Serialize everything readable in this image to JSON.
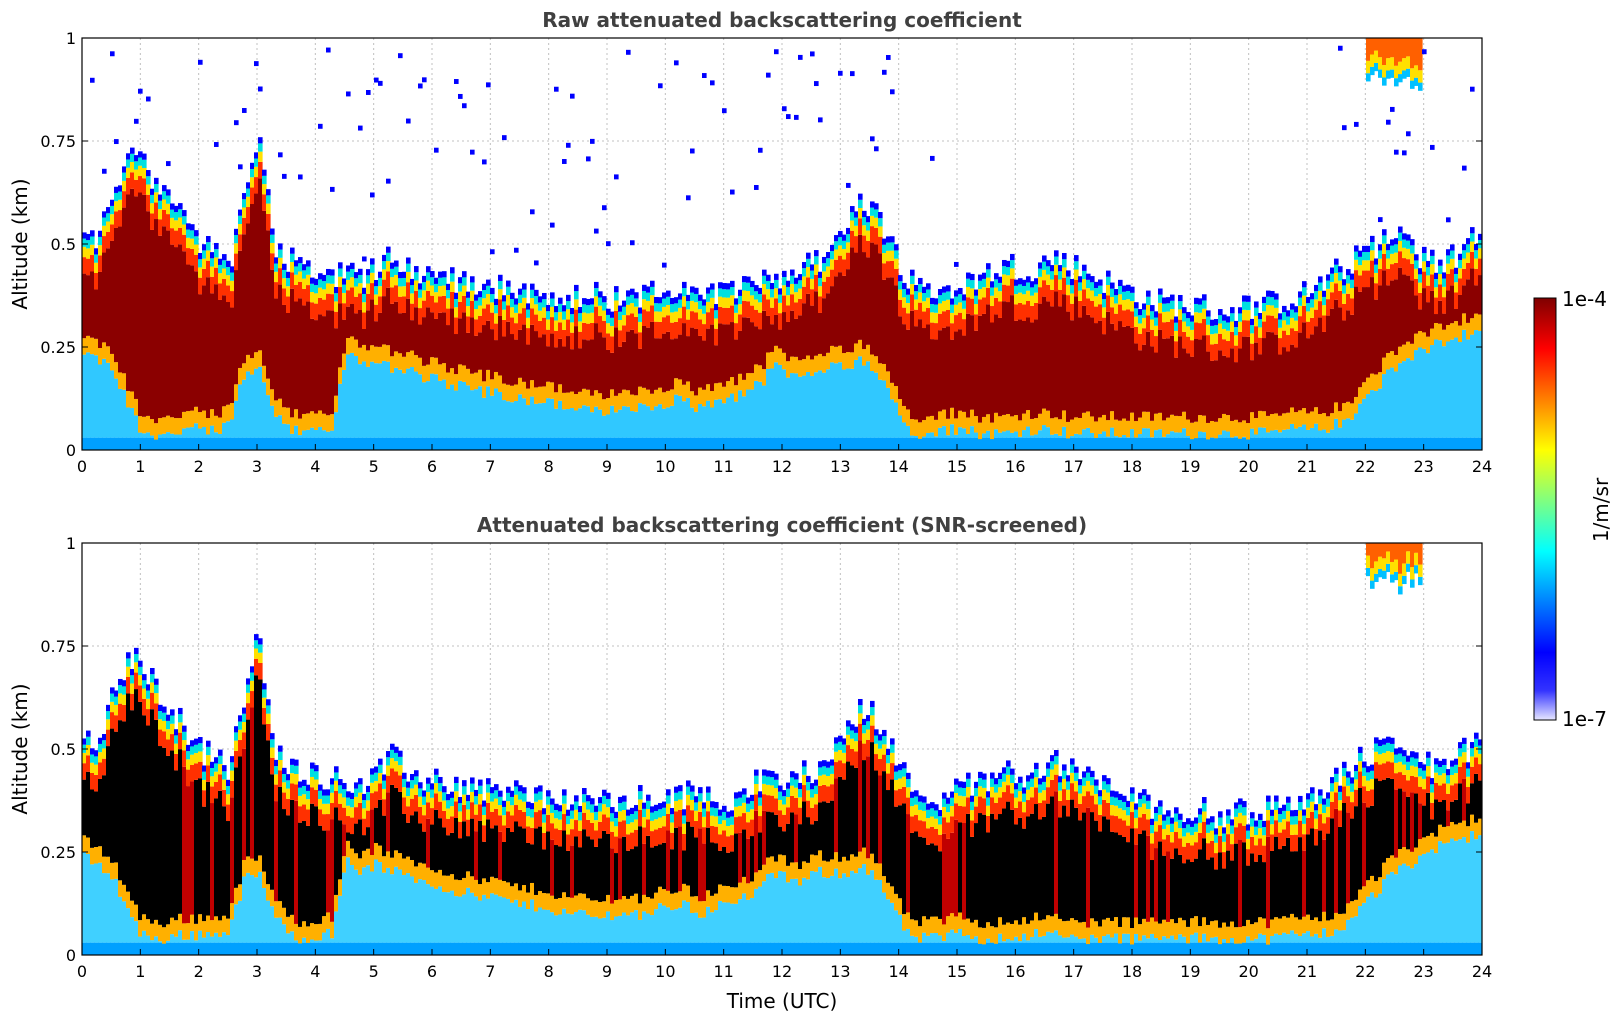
{
  "chart_data": [
    {
      "type": "heatmap",
      "title": "Raw attenuated backscattering coefficient",
      "xlabel": "",
      "ylabel": "Altitude (km)",
      "xlim": [
        0,
        24
      ],
      "ylim": [
        0,
        1
      ],
      "xticks": [
        "0",
        "1",
        "2",
        "3",
        "4",
        "5",
        "6",
        "7",
        "8",
        "9",
        "10",
        "11",
        "12",
        "13",
        "14",
        "15",
        "16",
        "17",
        "18",
        "19",
        "20",
        "21",
        "22",
        "23",
        "24"
      ],
      "yticks": [
        "0",
        "0.25",
        "0.5",
        "0.75",
        "1"
      ],
      "yticks_values": [
        0,
        0.25,
        0.5,
        0.75,
        1
      ],
      "grid": true,
      "screened": false,
      "layer_top_km": [
        0.52,
        0.5,
        0.62,
        0.7,
        0.72,
        0.65,
        0.6,
        0.55,
        0.5,
        0.48,
        0.45,
        0.62,
        0.78,
        0.5,
        0.46,
        0.45,
        0.44,
        0.43,
        0.42,
        0.42,
        0.44,
        0.48,
        0.45,
        0.43,
        0.42,
        0.42,
        0.41,
        0.41,
        0.4,
        0.4,
        0.39,
        0.39,
        0.38,
        0.38,
        0.37,
        0.38,
        0.37,
        0.37,
        0.38,
        0.38,
        0.38,
        0.39,
        0.39,
        0.38,
        0.38,
        0.41,
        0.42,
        0.43,
        0.42,
        0.44,
        0.46,
        0.5,
        0.55,
        0.6,
        0.58,
        0.5,
        0.42,
        0.4,
        0.38,
        0.4,
        0.41,
        0.42,
        0.44,
        0.45,
        0.44,
        0.45,
        0.47,
        0.45,
        0.44,
        0.42,
        0.4,
        0.39,
        0.37,
        0.36,
        0.36,
        0.35,
        0.35,
        0.34,
        0.34,
        0.35,
        0.35,
        0.36,
        0.37,
        0.38,
        0.4,
        0.43,
        0.45,
        0.48,
        0.5,
        0.52,
        0.5,
        0.47,
        0.45,
        0.47,
        0.5,
        0.55
      ],
      "layer_bottom_km": [
        0.24,
        0.22,
        0.2,
        0.12,
        0.05,
        0.04,
        0.04,
        0.05,
        0.05,
        0.05,
        0.06,
        0.18,
        0.2,
        0.1,
        0.05,
        0.04,
        0.05,
        0.05,
        0.24,
        0.2,
        0.22,
        0.2,
        0.2,
        0.18,
        0.17,
        0.16,
        0.15,
        0.14,
        0.14,
        0.13,
        0.12,
        0.12,
        0.11,
        0.1,
        0.1,
        0.09,
        0.1,
        0.1,
        0.1,
        0.11,
        0.12,
        0.12,
        0.1,
        0.12,
        0.12,
        0.14,
        0.16,
        0.2,
        0.18,
        0.18,
        0.2,
        0.2,
        0.2,
        0.22,
        0.18,
        0.12,
        0.05,
        0.04,
        0.04,
        0.05,
        0.05,
        0.04,
        0.04,
        0.04,
        0.05,
        0.05,
        0.05,
        0.04,
        0.04,
        0.04,
        0.04,
        0.04,
        0.04,
        0.04,
        0.04,
        0.04,
        0.04,
        0.04,
        0.04,
        0.04,
        0.04,
        0.04,
        0.05,
        0.05,
        0.05,
        0.06,
        0.08,
        0.12,
        0.16,
        0.2,
        0.22,
        0.24,
        0.26,
        0.27,
        0.28,
        0.3
      ],
      "cloud": {
        "x_range": [
          22.0,
          23.0
        ],
        "bottom_km": 0.9
      },
      "colorbar": {
        "label": "1/m/sr",
        "max": "1e-4",
        "min": "1e-7"
      }
    },
    {
      "type": "heatmap",
      "title": "Attenuated backscattering coefficient (SNR-screened)",
      "xlabel": "Time (UTC)",
      "ylabel": "Altitude (km)",
      "xlim": [
        0,
        24
      ],
      "ylim": [
        0,
        1
      ],
      "xticks": [
        "0",
        "1",
        "2",
        "3",
        "4",
        "5",
        "6",
        "7",
        "8",
        "9",
        "10",
        "11",
        "12",
        "13",
        "14",
        "15",
        "16",
        "17",
        "18",
        "19",
        "20",
        "21",
        "22",
        "23",
        "24"
      ],
      "yticks": [
        "0",
        "0.25",
        "0.5",
        "0.75",
        "1"
      ],
      "yticks_values": [
        0,
        0.25,
        0.5,
        0.75,
        1
      ],
      "grid": true,
      "screened": true,
      "layer_top_km": [
        0.52,
        0.5,
        0.62,
        0.7,
        0.72,
        0.65,
        0.6,
        0.55,
        0.5,
        0.48,
        0.45,
        0.62,
        0.78,
        0.5,
        0.46,
        0.45,
        0.44,
        0.43,
        0.42,
        0.42,
        0.44,
        0.48,
        0.45,
        0.43,
        0.42,
        0.42,
        0.41,
        0.41,
        0.4,
        0.4,
        0.39,
        0.39,
        0.38,
        0.38,
        0.37,
        0.38,
        0.37,
        0.37,
        0.38,
        0.38,
        0.38,
        0.39,
        0.39,
        0.38,
        0.38,
        0.41,
        0.42,
        0.43,
        0.42,
        0.44,
        0.46,
        0.5,
        0.55,
        0.6,
        0.58,
        0.5,
        0.42,
        0.4,
        0.38,
        0.4,
        0.41,
        0.42,
        0.44,
        0.45,
        0.44,
        0.45,
        0.47,
        0.45,
        0.44,
        0.42,
        0.4,
        0.39,
        0.37,
        0.36,
        0.36,
        0.35,
        0.35,
        0.34,
        0.34,
        0.35,
        0.35,
        0.36,
        0.37,
        0.38,
        0.4,
        0.43,
        0.45,
        0.48,
        0.5,
        0.52,
        0.5,
        0.47,
        0.45,
        0.47,
        0.5,
        0.55
      ],
      "layer_bottom_km": [
        0.24,
        0.22,
        0.2,
        0.12,
        0.05,
        0.04,
        0.04,
        0.05,
        0.05,
        0.05,
        0.06,
        0.18,
        0.2,
        0.1,
        0.05,
        0.04,
        0.05,
        0.05,
        0.24,
        0.2,
        0.22,
        0.2,
        0.2,
        0.18,
        0.17,
        0.16,
        0.15,
        0.14,
        0.14,
        0.13,
        0.12,
        0.12,
        0.11,
        0.1,
        0.1,
        0.09,
        0.1,
        0.1,
        0.1,
        0.11,
        0.12,
        0.12,
        0.1,
        0.12,
        0.12,
        0.14,
        0.16,
        0.2,
        0.18,
        0.18,
        0.2,
        0.2,
        0.2,
        0.22,
        0.18,
        0.12,
        0.05,
        0.04,
        0.04,
        0.05,
        0.05,
        0.04,
        0.04,
        0.04,
        0.05,
        0.05,
        0.05,
        0.04,
        0.04,
        0.04,
        0.04,
        0.04,
        0.04,
        0.04,
        0.04,
        0.04,
        0.04,
        0.04,
        0.04,
        0.04,
        0.04,
        0.04,
        0.05,
        0.05,
        0.05,
        0.06,
        0.08,
        0.12,
        0.16,
        0.2,
        0.22,
        0.24,
        0.26,
        0.27,
        0.28,
        0.3
      ],
      "cloud": {
        "x_range": [
          22.0,
          23.0
        ],
        "bottom_km": 0.9
      },
      "colorbar": {
        "label": "1/m/sr",
        "max": "1e-4",
        "min": "1e-7"
      }
    }
  ],
  "colorbar": {
    "label": "1/m/sr",
    "max_label": "1e-4",
    "min_label": "1e-7",
    "stops": [
      "#7f0000",
      "#ff0000",
      "#ff7f00",
      "#ffff00",
      "#7fff7f",
      "#00ffff",
      "#007fff",
      "#0000ff",
      "#00008f",
      "#e6e6ff"
    ]
  },
  "colors": {
    "high": "#8b0000",
    "screened_high": "#000000",
    "mid": "#ffcc00",
    "low": "#00c0ff",
    "edge": "#0000ff",
    "axis": "#000000",
    "title": "#404040",
    "grid": "#c0c0c0"
  }
}
